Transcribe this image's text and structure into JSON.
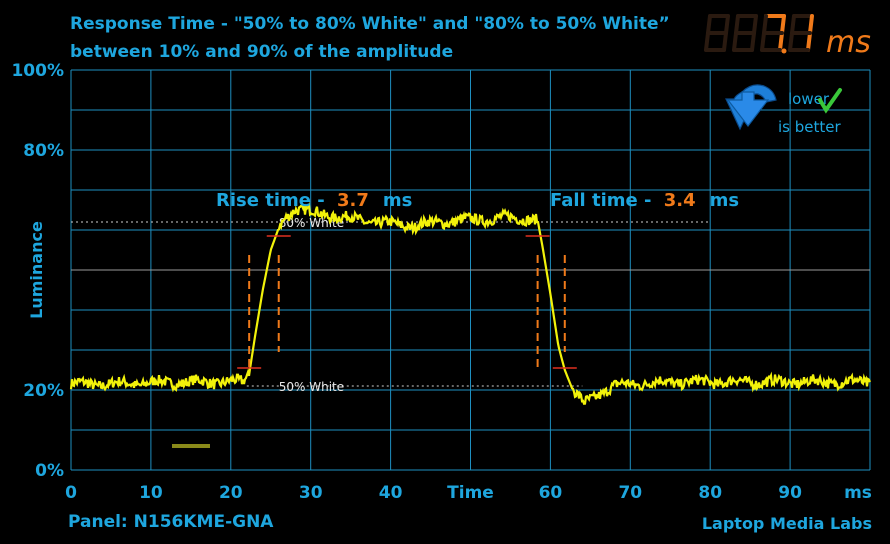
{
  "header": {
    "title_line1": "Response Time - \"50% to 80% White\" and \"80% to 50% White”",
    "title_line2": "between 10% and 90% of the amplitude",
    "readout_value": "7.1",
    "readout_unit": "ms"
  },
  "footer": {
    "panel": "Panel: N156KME-GNA",
    "brand": "Laptop Media Labs"
  },
  "badge": {
    "line1": "lower",
    "line2": "is better"
  },
  "colors": {
    "axis_text": "#1ea6de",
    "grid": "#1e8fc0",
    "trace": "#f2f20a",
    "marker": "#f07a1a",
    "digits_on": "#f07a1a",
    "digits_off": "#2a1a10"
  },
  "chart_data": {
    "type": "line",
    "xlabel": "Time",
    "xunit": "ms",
    "ylabel": "Luminance",
    "xlim": [
      0,
      100
    ],
    "ylim": [
      0,
      100
    ],
    "x_ticks": [
      0,
      10,
      20,
      30,
      40,
      60,
      70,
      80,
      90
    ],
    "y_ticks": [
      {
        "value": 100,
        "label": "100%"
      },
      {
        "value": 80,
        "label": "80%"
      },
      {
        "value": 20,
        "label": "20%"
      },
      {
        "value": 0,
        "label": "0%"
      }
    ],
    "grid": true,
    "reference_lines": [
      {
        "label": "80% White",
        "y": 62
      },
      {
        "label": "50% White",
        "y": 21
      }
    ],
    "annotations": [
      {
        "label": "Rise time - ",
        "value": "3.7",
        "unit": "ms",
        "x_from": 22.3,
        "x_to": 26.0
      },
      {
        "label": "Fall time - ",
        "value": "3.4",
        "unit": "ms",
        "x_from": 58.4,
        "x_to": 61.8
      }
    ],
    "series": [
      {
        "x": [
          0,
          5,
          10,
          15,
          20,
          21.5,
          22.3,
          23,
          24,
          25,
          26,
          26.8,
          28,
          30,
          33,
          36,
          40,
          43,
          46,
          50,
          54,
          57,
          58.4,
          59,
          60,
          61,
          61.8,
          62.8,
          64.2,
          66,
          68,
          70,
          75,
          80,
          85,
          90,
          95,
          100
        ],
        "y": [
          21.5,
          21.5,
          21.8,
          22,
          22,
          22,
          24,
          33,
          45,
          55,
          60.5,
          63,
          65.5,
          64.5,
          63.5,
          62.5,
          61.5,
          61,
          62,
          62.5,
          63,
          63,
          62.5,
          56,
          44,
          31,
          25,
          20,
          16.5,
          19,
          21,
          21.5,
          22,
          22,
          22,
          22,
          22,
          22
        ]
      }
    ]
  }
}
